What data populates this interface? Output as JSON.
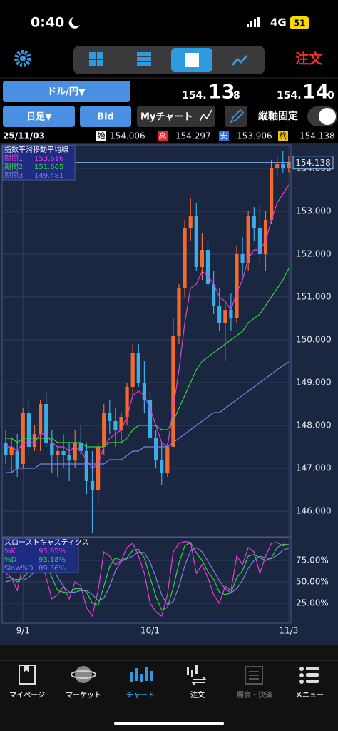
{
  "status_bar": {
    "time": "0:40",
    "network": "4G",
    "battery": "51"
  },
  "toolbar": {
    "order": "注文"
  },
  "pair": "ドル/円▼",
  "quote": {
    "bid_main": "154.",
    "bid_big": "13",
    "bid_small": "8",
    "ask_main": "154.",
    "ask_big": "14",
    "ask_small": "0"
  },
  "controls": {
    "period": "日足▼",
    "side": "Bid",
    "my_chart": "Myチャート",
    "lock": "縦軸固定"
  },
  "ohlc": {
    "date": "25/11/03",
    "open_label": "始",
    "open": "154.006",
    "high_label": "高",
    "high": "154.297",
    "low_label": "安",
    "low": "153.906",
    "close_label": "終",
    "close": "154.138"
  },
  "chart_data": [
    {
      "type": "candlestick",
      "categories": [
        null,
        null,
        null,
        "9/1",
        null,
        null,
        null,
        null,
        null,
        null,
        null,
        null,
        null,
        null,
        null,
        null,
        null,
        null,
        null,
        null,
        null,
        null,
        null,
        null,
        null,
        "10/1",
        null,
        null,
        null,
        null,
        null,
        null,
        null,
        null,
        null,
        null,
        null,
        null,
        null,
        null,
        null,
        null,
        null,
        null,
        null,
        null,
        null,
        null,
        null,
        "11/3"
      ],
      "open": [
        147.6,
        147.3,
        147.4,
        147.1,
        148.3,
        147.5,
        147.8,
        148.5,
        147.6,
        147.3,
        147.4,
        147.3,
        147.2,
        147.6,
        147.4,
        146.7,
        146.5,
        147.5,
        148.3,
        148.1,
        147.9,
        148.2,
        148.9,
        149.7,
        149.0,
        148.6,
        147.7,
        147.2,
        146.9,
        147.5,
        150.1,
        151.2,
        152.6,
        152.9,
        151.7,
        152.1,
        151.3,
        150.8,
        150.4,
        150.7,
        150.5,
        152.0,
        151.8,
        152.9,
        152.6,
        152.0,
        152.8,
        154.0,
        154.1,
        154.006
      ],
      "high": [
        147.9,
        147.7,
        147.8,
        148.4,
        148.6,
        148.0,
        148.6,
        148.8,
        147.9,
        147.5,
        147.8,
        147.6,
        147.9,
        148.0,
        147.6,
        147.4,
        147.6,
        148.5,
        148.6,
        148.4,
        148.3,
        149.0,
        149.9,
        149.9,
        149.5,
        148.8,
        147.9,
        147.6,
        147.6,
        150.5,
        151.3,
        152.8,
        153.3,
        153.2,
        152.5,
        152.3,
        151.6,
        151.2,
        150.9,
        151.1,
        152.2,
        152.4,
        153.0,
        153.1,
        153.2,
        153.0,
        154.2,
        154.3,
        154.4,
        154.297
      ],
      "low": [
        147.1,
        146.9,
        146.8,
        147.0,
        147.3,
        147.4,
        147.4,
        147.5,
        146.9,
        146.8,
        147.0,
        146.7,
        147.0,
        147.3,
        146.4,
        145.5,
        146.2,
        147.3,
        147.8,
        147.5,
        147.6,
        148.0,
        148.7,
        148.9,
        148.3,
        147.6,
        147.0,
        146.6,
        146.8,
        147.5,
        149.9,
        151.0,
        152.3,
        151.6,
        151.4,
        151.2,
        150.6,
        150.2,
        149.5,
        150.2,
        150.4,
        151.5,
        151.6,
        152.3,
        151.8,
        151.6,
        152.7,
        153.8,
        153.9,
        153.906
      ],
      "close": [
        147.3,
        147.5,
        147.0,
        148.3,
        147.5,
        147.8,
        148.5,
        147.6,
        147.3,
        147.4,
        147.3,
        147.2,
        147.6,
        147.4,
        146.7,
        146.5,
        147.5,
        148.3,
        148.1,
        147.9,
        148.2,
        148.9,
        149.7,
        149.0,
        148.6,
        147.7,
        147.2,
        146.9,
        147.5,
        150.1,
        151.2,
        152.6,
        152.9,
        151.7,
        152.1,
        151.3,
        150.8,
        150.4,
        150.7,
        150.5,
        152.0,
        151.8,
        152.9,
        152.6,
        152.0,
        152.8,
        154.0,
        154.1,
        154.0,
        154.138
      ],
      "up_color": "#f26a2e",
      "down_color": "#3aaee6",
      "ylim": [
        145.4,
        154.55
      ],
      "yticks": [
        {
          "value": 146,
          "label": "146.000"
        },
        {
          "value": 147,
          "label": "147.000"
        },
        {
          "value": 148,
          "label": "148.000"
        },
        {
          "value": 149,
          "label": "149.000"
        },
        {
          "value": 150,
          "label": "150.000"
        },
        {
          "value": 151,
          "label": "151.000"
        },
        {
          "value": 152,
          "label": "152.000"
        },
        {
          "value": 153,
          "label": "153.000"
        },
        {
          "value": 154,
          "label": "154.000"
        }
      ],
      "last_price": {
        "value": 154.138,
        "label": "154.138"
      },
      "overlay_title": "指数平滑移動平均線",
      "overlays": [
        {
          "name": "期間1",
          "last_label": "153.616",
          "color": "#e23fd6",
          "values": [
            147.5,
            147.5,
            147.4,
            147.6,
            147.6,
            147.6,
            147.8,
            147.8,
            147.6,
            147.5,
            147.5,
            147.4,
            147.5,
            147.4,
            147.2,
            147.0,
            147.1,
            147.5,
            147.7,
            147.8,
            147.9,
            148.2,
            148.7,
            148.8,
            148.7,
            148.4,
            148.0,
            147.6,
            147.5,
            148.4,
            149.3,
            150.4,
            151.2,
            151.3,
            151.6,
            151.5,
            151.3,
            151.0,
            150.9,
            150.7,
            151.1,
            151.4,
            151.9,
            152.1,
            152.1,
            152.3,
            152.8,
            153.2,
            153.4,
            153.616
          ]
        },
        {
          "name": "期間2",
          "last_label": "151.665",
          "color": "#34d33a",
          "values": [
            147.7,
            147.7,
            147.6,
            147.7,
            147.7,
            147.7,
            147.7,
            147.7,
            147.7,
            147.6,
            147.6,
            147.6,
            147.6,
            147.6,
            147.5,
            147.5,
            147.5,
            147.5,
            147.6,
            147.6,
            147.6,
            147.7,
            147.9,
            148.0,
            148.0,
            148.0,
            148.0,
            147.9,
            147.9,
            148.1,
            148.4,
            148.7,
            149.0,
            149.3,
            149.5,
            149.6,
            149.7,
            149.8,
            149.9,
            150.0,
            150.1,
            150.2,
            150.4,
            150.5,
            150.6,
            150.8,
            151.0,
            151.2,
            151.4,
            151.665
          ]
        },
        {
          "name": "期間3",
          "last_label": "149.481",
          "color": "#7c80e0",
          "values": [
            146.9,
            146.9,
            147.0,
            147.0,
            147.0,
            147.0,
            147.1,
            147.1,
            147.1,
            147.1,
            147.1,
            147.1,
            147.1,
            147.1,
            147.1,
            147.1,
            147.1,
            147.1,
            147.2,
            147.2,
            147.2,
            147.3,
            147.4,
            147.4,
            147.5,
            147.5,
            147.5,
            147.5,
            147.5,
            147.6,
            147.7,
            147.8,
            147.9,
            148.0,
            148.1,
            148.2,
            148.3,
            148.3,
            148.4,
            148.5,
            148.6,
            148.7,
            148.8,
            148.9,
            149.0,
            149.1,
            149.2,
            149.3,
            149.4,
            149.481
          ]
        }
      ]
    },
    {
      "type": "line",
      "title": "スローストキャスティクス",
      "ylim": [
        0,
        100
      ],
      "yticks": [
        {
          "value": 25,
          "label": "25.00%"
        },
        {
          "value": 50,
          "label": "50.00%"
        },
        {
          "value": 75,
          "label": "75.00%"
        }
      ],
      "series": [
        {
          "name": "%K",
          "last_label": "93.95%",
          "color": "#e23fd6",
          "values": [
            60,
            55,
            40,
            70,
            75,
            80,
            85,
            55,
            30,
            35,
            45,
            30,
            50,
            45,
            20,
            10,
            40,
            85,
            80,
            70,
            75,
            90,
            95,
            80,
            60,
            25,
            15,
            10,
            35,
            85,
            95,
            97,
            96,
            60,
            70,
            55,
            35,
            25,
            45,
            40,
            80,
            70,
            90,
            85,
            60,
            80,
            95,
            96,
            92,
            93.95
          ]
        },
        {
          "name": "%D",
          "last_label": "93.18%",
          "color": "#34d33a",
          "values": [
            55,
            55,
            50,
            55,
            62,
            75,
            80,
            72,
            55,
            40,
            38,
            37,
            42,
            42,
            38,
            25,
            23,
            45,
            68,
            78,
            75,
            78,
            87,
            88,
            78,
            55,
            33,
            17,
            20,
            43,
            72,
            92,
            96,
            84,
            75,
            62,
            53,
            38,
            35,
            37,
            55,
            63,
            80,
            82,
            78,
            75,
            78,
            90,
            94,
            93.18
          ]
        },
        {
          "name": "Slow%D",
          "last_label": "89.36%",
          "color": "#7c80e0",
          "values": [
            50,
            52,
            53,
            52,
            55,
            62,
            72,
            75,
            70,
            55,
            45,
            38,
            38,
            40,
            40,
            35,
            28,
            31,
            45,
            63,
            74,
            77,
            80,
            85,
            84,
            73,
            55,
            35,
            23,
            27,
            45,
            69,
            86,
            90,
            85,
            74,
            63,
            51,
            42,
            37,
            42,
            52,
            66,
            75,
            80,
            78,
            77,
            81,
            87,
            89.36
          ]
        }
      ]
    }
  ],
  "tab_bar": [
    {
      "label": "マイページ"
    },
    {
      "label": "マーケット"
    },
    {
      "label": "チャート"
    },
    {
      "label": "注文"
    },
    {
      "label": "照会・決済"
    },
    {
      "label": "メニュー"
    }
  ]
}
